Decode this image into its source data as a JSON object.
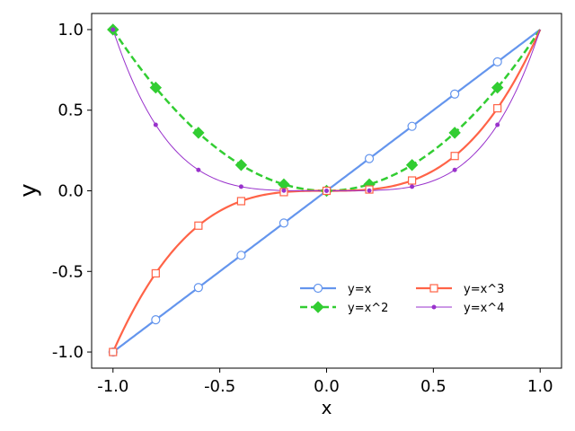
{
  "chart_data": {
    "type": "line",
    "xlabel": "x",
    "ylabel": "y",
    "xlim": [
      -1.1,
      1.1
    ],
    "ylim": [
      -1.1,
      1.1
    ],
    "xticks": [
      -1.0,
      -0.5,
      0.0,
      0.5,
      1.0
    ],
    "xtick_labels": [
      "-1.0",
      "-0.5",
      "0.0",
      "0.5",
      "1.0"
    ],
    "yticks": [
      -1.0,
      -0.5,
      0.0,
      0.5,
      1.0
    ],
    "ytick_labels": [
      "-1.0",
      "-0.5",
      "0.0",
      "0.5",
      "1.0"
    ],
    "grid": false,
    "legend_position": "lower-right",
    "x": [
      -1.0,
      -0.8,
      -0.6,
      -0.4,
      -0.2,
      0.0,
      0.2,
      0.4,
      0.6,
      0.8
    ],
    "series": [
      {
        "name": "y=x",
        "color": "#6495ED",
        "line_style": "solid",
        "marker": "circle-open",
        "values": [
          -1.0,
          -0.8,
          -0.6,
          -0.4,
          -0.2,
          0.0,
          0.2,
          0.4,
          0.6,
          0.8
        ]
      },
      {
        "name": "y=x^2",
        "color": "#32CD32",
        "line_style": "dashed",
        "marker": "diamond",
        "values": [
          1.0,
          0.64,
          0.36,
          0.16,
          0.04,
          0.0,
          0.04,
          0.16,
          0.36,
          0.64
        ]
      },
      {
        "name": "y=x^3",
        "color": "#FF6347",
        "line_style": "solid",
        "marker": "square-open",
        "values": [
          -1.0,
          -0.512,
          -0.216,
          -0.064,
          -0.008,
          0.0,
          0.008,
          0.064,
          0.216,
          0.512
        ]
      },
      {
        "name": "y=x^4",
        "color": "#9932CC",
        "line_style": "solid-thin",
        "marker": "dot",
        "values": [
          1.0,
          0.4096,
          0.1296,
          0.0256,
          0.0016,
          0.0,
          0.0016,
          0.0256,
          0.1296,
          0.4096
        ]
      }
    ]
  }
}
